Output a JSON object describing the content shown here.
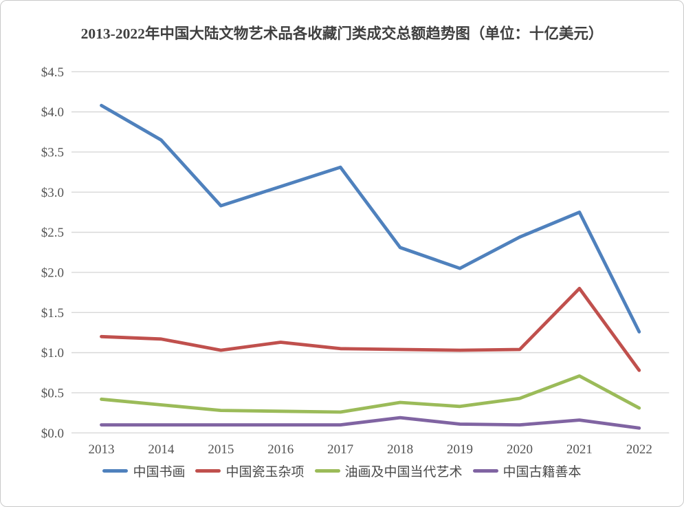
{
  "chart_data": {
    "type": "line",
    "title": "2013-2022年中国大陆文物艺术品各收藏门类成交总额趋势图（单位：十亿美元）",
    "categories": [
      "2013",
      "2014",
      "2015",
      "2016",
      "2017",
      "2018",
      "2019",
      "2020",
      "2021",
      "2022"
    ],
    "series": [
      {
        "name": "中国书画",
        "color": "#4F81BD",
        "values": [
          4.08,
          3.65,
          2.83,
          3.07,
          3.31,
          2.31,
          2.05,
          2.44,
          2.75,
          1.26
        ]
      },
      {
        "name": "中国瓷玉杂项",
        "color": "#C0504D",
        "values": [
          1.2,
          1.17,
          1.03,
          1.13,
          1.05,
          1.04,
          1.03,
          1.04,
          1.8,
          0.78
        ]
      },
      {
        "name": "油画及中国当代艺术",
        "color": "#9BBB59",
        "values": [
          0.42,
          0.35,
          0.28,
          0.27,
          0.26,
          0.38,
          0.33,
          0.43,
          0.71,
          0.31
        ]
      },
      {
        "name": "中国古籍善本",
        "color": "#8064A2",
        "values": [
          0.1,
          0.1,
          0.1,
          0.1,
          0.1,
          0.19,
          0.11,
          0.1,
          0.16,
          0.06
        ]
      }
    ],
    "xlabel": "",
    "ylabel": "",
    "ylim": [
      0,
      4.5
    ],
    "y_tick_step": 0.5,
    "y_tick_labels": [
      "$0.0",
      "$0.5",
      "$1.0",
      "$1.5",
      "$2.0",
      "$2.5",
      "$3.0",
      "$3.5",
      "$4.0",
      "$4.5"
    ],
    "grid": "horizontal",
    "legend_position": "bottom",
    "colors": {
      "gridline": "#D8D8D8",
      "axis_text": "#545454",
      "title_text": "#3F3F3F",
      "background": "#FFFFFF",
      "frame_border": "#C9C9C9"
    }
  }
}
